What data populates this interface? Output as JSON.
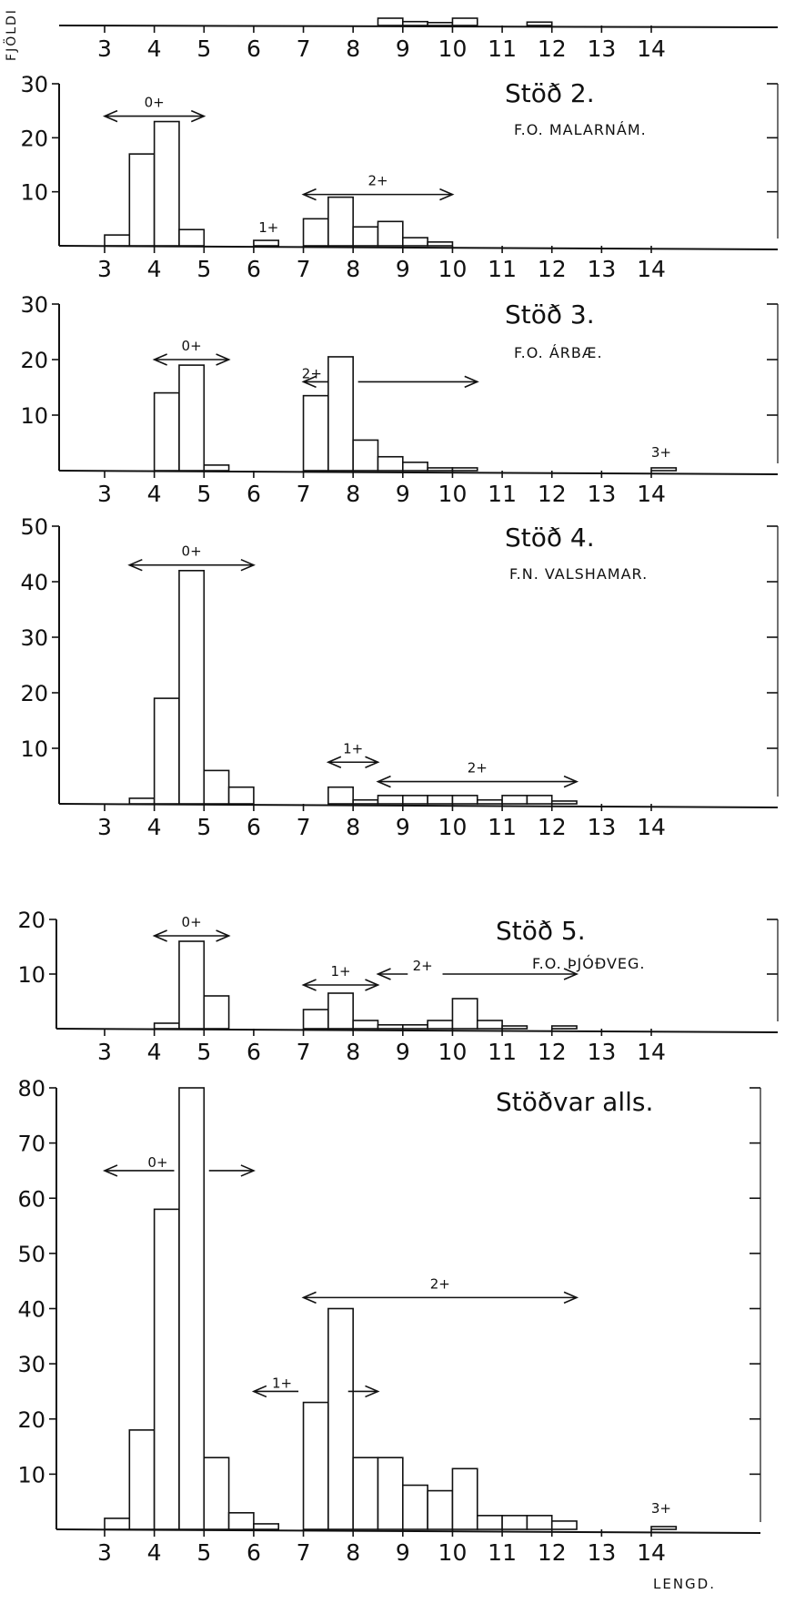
{
  "y_axis_label": "FJÖLDI",
  "x_axis_label": "LENGD.",
  "chart_data": [
    {
      "type": "bar",
      "name": "station-1-partial",
      "title": "",
      "subtitle": "",
      "ylim": [
        0,
        6
      ],
      "yticks": [],
      "xticks": [
        3,
        4,
        5,
        6,
        7,
        8,
        9,
        10,
        11,
        12,
        13,
        14
      ],
      "bin_width": 0.5,
      "bins": [
        [
          8.5,
          1.5
        ],
        [
          9.0,
          0.8
        ],
        [
          9.5,
          0.6
        ],
        [
          10.0,
          1.5
        ],
        [
          11.5,
          0.7
        ]
      ],
      "age_groups": []
    },
    {
      "type": "bar",
      "name": "station-2",
      "title": "Stöð 2.",
      "subtitle": "F.O. MALARNÁM.",
      "ylim": [
        0,
        30
      ],
      "yticks": [
        10,
        20,
        30
      ],
      "xticks": [
        3,
        4,
        5,
        6,
        7,
        8,
        9,
        10,
        11,
        12,
        13,
        14
      ],
      "bin_width": 0.5,
      "bins": [
        [
          3.0,
          2
        ],
        [
          3.5,
          17
        ],
        [
          4.0,
          23
        ],
        [
          4.5,
          3
        ],
        [
          6.0,
          1
        ],
        [
          7.0,
          5
        ],
        [
          7.5,
          9
        ],
        [
          8.0,
          3.5
        ],
        [
          8.5,
          4.5
        ],
        [
          9.0,
          1.5
        ],
        [
          9.5,
          0.7
        ]
      ],
      "age_groups": [
        {
          "label": "0+",
          "from": 3.0,
          "to": 5.0,
          "y": 24
        },
        {
          "label": "1+",
          "from": 6.3,
          "to": 6.3,
          "y": 2.5,
          "no_arrow": true
        },
        {
          "label": "2+",
          "from": 7.0,
          "to": 10.0,
          "y": 9.5
        }
      ]
    },
    {
      "type": "bar",
      "name": "station-3",
      "title": "Stöð 3.",
      "subtitle": "F.O. ÁRBÆ.",
      "ylim": [
        0,
        30
      ],
      "yticks": [
        10,
        20,
        30
      ],
      "xticks": [
        3,
        4,
        5,
        6,
        7,
        8,
        9,
        10,
        11,
        12,
        13,
        14
      ],
      "bin_width": 0.5,
      "bins": [
        [
          4.0,
          14
        ],
        [
          4.5,
          19
        ],
        [
          5.0,
          1
        ],
        [
          7.0,
          13.5
        ],
        [
          7.5,
          20.5
        ],
        [
          8.0,
          5.5
        ],
        [
          8.5,
          2.5
        ],
        [
          9.0,
          1.5
        ],
        [
          9.5,
          0.5
        ],
        [
          10.0,
          0.5
        ],
        [
          14.0,
          0.5
        ]
      ],
      "age_groups": [
        {
          "label": "0+",
          "from": 4.0,
          "to": 5.5,
          "y": 20
        },
        {
          "label": "2+",
          "from": 7.0,
          "to": 10.5,
          "y": 16,
          "gap": [
            7.5,
            8.1
          ]
        },
        {
          "label": "3+",
          "from": 14.2,
          "to": 14.2,
          "y": 2.5,
          "no_arrow": true
        }
      ]
    },
    {
      "type": "bar",
      "name": "station-4",
      "title": "Stöð 4.",
      "subtitle": "F.N. VALSHAMAR.",
      "ylim": [
        0,
        50
      ],
      "yticks": [
        10,
        20,
        30,
        40,
        50
      ],
      "xticks": [
        3,
        4,
        5,
        6,
        7,
        8,
        9,
        10,
        11,
        12,
        13,
        14
      ],
      "bin_width": 0.5,
      "bins": [
        [
          3.5,
          1
        ],
        [
          4.0,
          19
        ],
        [
          4.5,
          42
        ],
        [
          5.0,
          6
        ],
        [
          5.5,
          3
        ],
        [
          7.5,
          3
        ],
        [
          8.0,
          0.7
        ],
        [
          8.5,
          1.5
        ],
        [
          9.0,
          1.5
        ],
        [
          9.5,
          1.5
        ],
        [
          10.0,
          1.5
        ],
        [
          10.5,
          0.7
        ],
        [
          11.0,
          1.5
        ],
        [
          11.5,
          1.5
        ],
        [
          12.0,
          0.5
        ]
      ],
      "age_groups": [
        {
          "label": "0+",
          "from": 3.5,
          "to": 6.0,
          "y": 43
        },
        {
          "label": "1+",
          "from": 7.5,
          "to": 8.5,
          "y": 7.5
        },
        {
          "label": "2+",
          "from": 8.5,
          "to": 12.5,
          "y": 4
        }
      ]
    },
    {
      "type": "bar",
      "name": "station-5",
      "title": "Stöð 5.",
      "subtitle": "F.O. ÞJÓÐVEG.",
      "ylim": [
        0,
        20
      ],
      "yticks": [
        10,
        20
      ],
      "xticks": [
        3,
        4,
        5,
        6,
        7,
        8,
        9,
        10,
        11,
        12,
        13,
        14
      ],
      "bin_width": 0.5,
      "bins": [
        [
          4.0,
          1
        ],
        [
          4.5,
          16
        ],
        [
          5.0,
          6
        ],
        [
          7.0,
          3.5
        ],
        [
          7.5,
          6.5
        ],
        [
          8.0,
          1.5
        ],
        [
          8.5,
          0.7
        ],
        [
          9.0,
          0.7
        ],
        [
          9.5,
          1.5
        ],
        [
          10.0,
          5.5
        ],
        [
          10.5,
          1.5
        ],
        [
          11.0,
          0.5
        ],
        [
          12.0,
          0.5
        ]
      ],
      "age_groups": [
        {
          "label": "0+",
          "from": 4.0,
          "to": 5.5,
          "y": 17
        },
        {
          "label": "1+",
          "from": 7.0,
          "to": 8.5,
          "y": 8
        },
        {
          "label": "2+",
          "from": 8.5,
          "to": 12.5,
          "y": 10,
          "label_x": 9.4,
          "gap": [
            9.1,
            9.8
          ]
        }
      ]
    },
    {
      "type": "bar",
      "name": "all-stations",
      "title": "Stöðvar alls.",
      "subtitle": "",
      "ylim": [
        0,
        80
      ],
      "yticks": [
        10,
        20,
        30,
        40,
        50,
        60,
        70,
        80
      ],
      "xticks": [
        3,
        4,
        5,
        6,
        7,
        8,
        9,
        10,
        11,
        12,
        13,
        14
      ],
      "bin_width": 0.5,
      "bins": [
        [
          3.0,
          2
        ],
        [
          3.5,
          18
        ],
        [
          4.0,
          58
        ],
        [
          4.5,
          80
        ],
        [
          5.0,
          13
        ],
        [
          5.5,
          3
        ],
        [
          6.0,
          1
        ],
        [
          7.0,
          23
        ],
        [
          7.5,
          40
        ],
        [
          8.0,
          13
        ],
        [
          8.5,
          13
        ],
        [
          9.0,
          8
        ],
        [
          9.5,
          7
        ],
        [
          10.0,
          11
        ],
        [
          10.5,
          2.5
        ],
        [
          11.0,
          2.5
        ],
        [
          11.5,
          2.5
        ],
        [
          12.0,
          1.5
        ],
        [
          14.0,
          0.5
        ]
      ],
      "age_groups": [
        {
          "label": "0+",
          "from": 3.0,
          "to": 6.0,
          "y": 65,
          "gap": [
            4.4,
            5.1
          ]
        },
        {
          "label": "1+",
          "from": 6.0,
          "to": 8.5,
          "y": 25,
          "gap": [
            6.9,
            7.9
          ]
        },
        {
          "label": "2+",
          "from": 7.0,
          "to": 12.5,
          "y": 42
        },
        {
          "label": "3+",
          "from": 14.2,
          "to": 14.2,
          "y": 3,
          "no_arrow": true
        }
      ]
    }
  ]
}
